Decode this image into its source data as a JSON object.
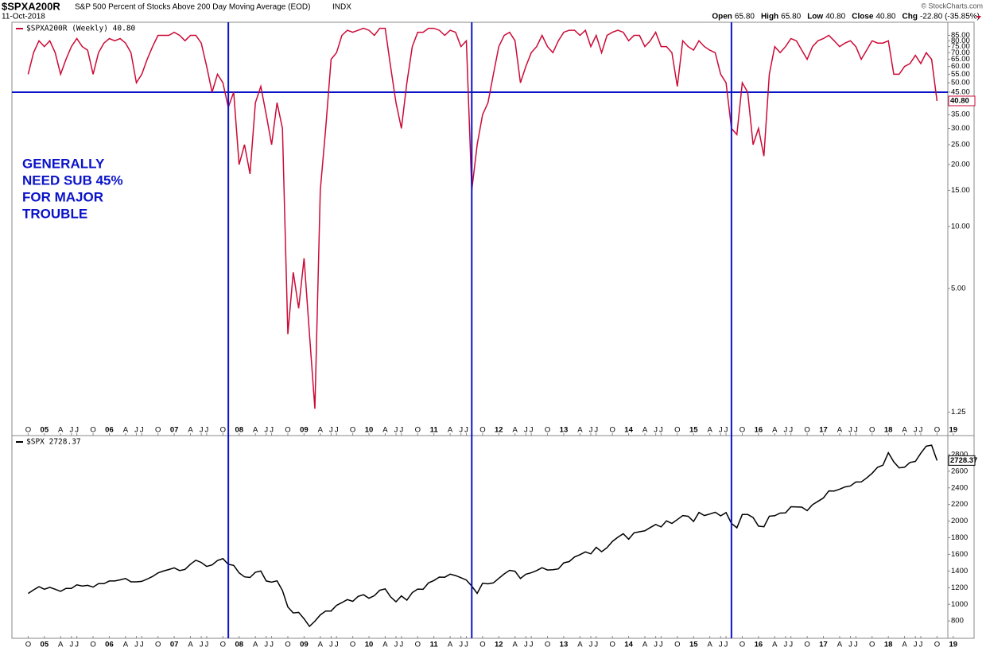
{
  "header": {
    "symbol": "$SPXA200R",
    "description": "S&P 500 Percent of Stocks Above 200 Day Moving Average (EOD)",
    "exchange": "INDX",
    "date": "11-Oct-2018",
    "watermark": "© StockCharts.com",
    "stats": [
      {
        "label": "Open",
        "value": "65.80"
      },
      {
        "label": "High",
        "value": "65.80"
      },
      {
        "label": "Low",
        "value": "40.80"
      },
      {
        "label": "Close",
        "value": "40.80"
      },
      {
        "label": "Chg",
        "value": "-22.80 (-35.85%)"
      }
    ]
  },
  "chart_data": {
    "type": "line",
    "x": [
      "2004-10",
      "2004-11",
      "2004-12",
      "2005-01",
      "2005-02",
      "2005-03",
      "2005-04",
      "2005-05",
      "2005-06",
      "2005-07",
      "2005-08",
      "2005-09",
      "2005-10",
      "2005-11",
      "2005-12",
      "2006-01",
      "2006-02",
      "2006-03",
      "2006-04",
      "2006-05",
      "2006-06",
      "2006-07",
      "2006-08",
      "2006-09",
      "2006-10",
      "2006-11",
      "2006-12",
      "2007-01",
      "2007-02",
      "2007-03",
      "2007-04",
      "2007-05",
      "2007-06",
      "2007-07",
      "2007-08",
      "2007-09",
      "2007-10",
      "2007-11",
      "2007-12",
      "2008-01",
      "2008-02",
      "2008-03",
      "2008-04",
      "2008-05",
      "2008-06",
      "2008-07",
      "2008-08",
      "2008-09",
      "2008-10",
      "2008-11",
      "2008-12",
      "2009-01",
      "2009-02",
      "2009-03",
      "2009-04",
      "2009-05",
      "2009-06",
      "2009-07",
      "2009-08",
      "2009-09",
      "2009-10",
      "2009-11",
      "2009-12",
      "2010-01",
      "2010-02",
      "2010-03",
      "2010-04",
      "2010-05",
      "2010-06",
      "2010-07",
      "2010-08",
      "2010-09",
      "2010-10",
      "2010-11",
      "2010-12",
      "2011-01",
      "2011-02",
      "2011-03",
      "2011-04",
      "2011-05",
      "2011-06",
      "2011-07",
      "2011-08",
      "2011-09",
      "2011-10",
      "2011-11",
      "2011-12",
      "2012-01",
      "2012-02",
      "2012-03",
      "2012-04",
      "2012-05",
      "2012-06",
      "2012-07",
      "2012-08",
      "2012-09",
      "2012-10",
      "2012-11",
      "2012-12",
      "2013-01",
      "2013-02",
      "2013-03",
      "2013-04",
      "2013-05",
      "2013-06",
      "2013-07",
      "2013-08",
      "2013-09",
      "2013-10",
      "2013-11",
      "2013-12",
      "2014-01",
      "2014-02",
      "2014-03",
      "2014-04",
      "2014-05",
      "2014-06",
      "2014-07",
      "2014-08",
      "2014-09",
      "2014-10",
      "2014-11",
      "2014-12",
      "2015-01",
      "2015-02",
      "2015-03",
      "2015-04",
      "2015-05",
      "2015-06",
      "2015-07",
      "2015-08",
      "2015-09",
      "2015-10",
      "2015-11",
      "2015-12",
      "2016-01",
      "2016-02",
      "2016-03",
      "2016-04",
      "2016-05",
      "2016-06",
      "2016-07",
      "2016-08",
      "2016-09",
      "2016-10",
      "2016-11",
      "2016-12",
      "2017-01",
      "2017-02",
      "2017-03",
      "2017-04",
      "2017-05",
      "2017-06",
      "2017-07",
      "2017-08",
      "2017-09",
      "2017-10",
      "2017-11",
      "2017-12",
      "2018-01",
      "2018-02",
      "2018-03",
      "2018-04",
      "2018-05",
      "2018-06",
      "2018-07",
      "2018-08",
      "2018-09",
      "2018-10"
    ],
    "xticks": [
      {
        "value": "2004-10",
        "label": "O"
      },
      {
        "value": "2005-01",
        "label": "05"
      },
      {
        "value": "2005-04",
        "label": "A"
      },
      {
        "value": "2005-06",
        "label": "J"
      },
      {
        "value": "2005-07",
        "label": "J"
      },
      {
        "value": "2005-10",
        "label": "O"
      },
      {
        "value": "2006-01",
        "label": "06"
      },
      {
        "value": "2006-04",
        "label": "A"
      },
      {
        "value": "2006-06",
        "label": "J"
      },
      {
        "value": "2006-07",
        "label": "J"
      },
      {
        "value": "2006-10",
        "label": "O"
      },
      {
        "value": "2007-01",
        "label": "07"
      },
      {
        "value": "2007-04",
        "label": "A"
      },
      {
        "value": "2007-06",
        "label": "J"
      },
      {
        "value": "2007-07",
        "label": "J"
      },
      {
        "value": "2007-10",
        "label": "O"
      },
      {
        "value": "2008-01",
        "label": "08"
      },
      {
        "value": "2008-04",
        "label": "A"
      },
      {
        "value": "2008-06",
        "label": "J"
      },
      {
        "value": "2008-07",
        "label": "J"
      },
      {
        "value": "2008-10",
        "label": "O"
      },
      {
        "value": "2009-01",
        "label": "09"
      },
      {
        "value": "2009-04",
        "label": "A"
      },
      {
        "value": "2009-06",
        "label": "J"
      },
      {
        "value": "2009-07",
        "label": "J"
      },
      {
        "value": "2009-10",
        "label": "O"
      },
      {
        "value": "2010-01",
        "label": "10"
      },
      {
        "value": "2010-04",
        "label": "A"
      },
      {
        "value": "2010-06",
        "label": "J"
      },
      {
        "value": "2010-07",
        "label": "J"
      },
      {
        "value": "2010-10",
        "label": "O"
      },
      {
        "value": "2011-01",
        "label": "11"
      },
      {
        "value": "2011-04",
        "label": "A"
      },
      {
        "value": "2011-06",
        "label": "J"
      },
      {
        "value": "2011-07",
        "label": "J"
      },
      {
        "value": "2011-10",
        "label": "O"
      },
      {
        "value": "2012-01",
        "label": "12"
      },
      {
        "value": "2012-04",
        "label": "A"
      },
      {
        "value": "2012-06",
        "label": "J"
      },
      {
        "value": "2012-07",
        "label": "J"
      },
      {
        "value": "2012-10",
        "label": "O"
      },
      {
        "value": "2013-01",
        "label": "13"
      },
      {
        "value": "2013-04",
        "label": "A"
      },
      {
        "value": "2013-06",
        "label": "J"
      },
      {
        "value": "2013-07",
        "label": "J"
      },
      {
        "value": "2013-10",
        "label": "O"
      },
      {
        "value": "2014-01",
        "label": "14"
      },
      {
        "value": "2014-04",
        "label": "A"
      },
      {
        "value": "2014-06",
        "label": "J"
      },
      {
        "value": "2014-07",
        "label": "J"
      },
      {
        "value": "2014-10",
        "label": "O"
      },
      {
        "value": "2015-01",
        "label": "15"
      },
      {
        "value": "2015-04",
        "label": "A"
      },
      {
        "value": "2015-06",
        "label": "J"
      },
      {
        "value": "2015-07",
        "label": "J"
      },
      {
        "value": "2015-10",
        "label": "O"
      },
      {
        "value": "2016-01",
        "label": "16"
      },
      {
        "value": "2016-04",
        "label": "A"
      },
      {
        "value": "2016-06",
        "label": "J"
      },
      {
        "value": "2016-07",
        "label": "J"
      },
      {
        "value": "2016-10",
        "label": "O"
      },
      {
        "value": "2017-01",
        "label": "17"
      },
      {
        "value": "2017-04",
        "label": "A"
      },
      {
        "value": "2017-06",
        "label": "J"
      },
      {
        "value": "2017-07",
        "label": "J"
      },
      {
        "value": "2017-10",
        "label": "O"
      },
      {
        "value": "2018-01",
        "label": "18"
      },
      {
        "value": "2018-04",
        "label": "A"
      },
      {
        "value": "2018-06",
        "label": "J"
      },
      {
        "value": "2018-07",
        "label": "J"
      },
      {
        "value": "2018-10",
        "label": "O"
      },
      {
        "value": "2019-01",
        "label": "19"
      }
    ],
    "xlim": [
      "2004-07",
      "2018-12"
    ],
    "vlines": [
      "2007-11",
      "2011-08",
      "2015-08"
    ],
    "panels": [
      {
        "name": "$SPXA200R (Weekly) 40.80",
        "color": "#cc0a36",
        "log_scale": true,
        "ylim": [
          1.15,
          95
        ],
        "yticks": [
          {
            "value": 85,
            "label": "85.00"
          },
          {
            "value": 80,
            "label": "80.00"
          },
          {
            "value": 75,
            "label": "75.00"
          },
          {
            "value": 70,
            "label": "70.00"
          },
          {
            "value": 65,
            "label": "65.00"
          },
          {
            "value": 60,
            "label": "60.00"
          },
          {
            "value": 55,
            "label": "55.00"
          },
          {
            "value": 50,
            "label": "50.00"
          },
          {
            "value": 45,
            "label": "45.00"
          },
          {
            "value": 40,
            "label": "40.00"
          },
          {
            "value": 35,
            "label": "35.00"
          },
          {
            "value": 30,
            "label": "30.00"
          },
          {
            "value": 25,
            "label": "25.00"
          },
          {
            "value": 20,
            "label": "20.00"
          },
          {
            "value": 15,
            "label": "15.00"
          },
          {
            "value": 10,
            "label": "10.00"
          },
          {
            "value": 5,
            "label": "5.00"
          },
          {
            "value": 1.25,
            "label": "1.25"
          }
        ],
        "hline": 45,
        "hline_color": "#0a12c8",
        "last_value_label": "40.80",
        "annotation": [
          "GENERALLY",
          "NEED SUB 45%",
          "FOR MAJOR",
          "TROUBLE"
        ],
        "values": [
          55,
          70,
          80,
          75,
          80,
          70,
          55,
          65,
          75,
          82,
          75,
          72,
          55,
          70,
          78,
          82,
          80,
          82,
          78,
          70,
          50,
          55,
          65,
          75,
          85,
          85,
          85,
          88,
          85,
          80,
          85,
          85,
          78,
          60,
          45,
          55,
          50,
          38,
          45,
          20,
          25,
          18,
          40,
          48,
          35,
          25,
          40,
          30,
          3,
          6,
          4,
          7,
          3,
          1.3,
          15,
          30,
          65,
          70,
          85,
          90,
          88,
          90,
          92,
          90,
          85,
          92,
          92,
          60,
          40,
          30,
          50,
          75,
          88,
          88,
          92,
          92,
          90,
          85,
          90,
          88,
          75,
          80,
          15,
          25,
          35,
          40,
          55,
          75,
          85,
          88,
          80,
          50,
          60,
          70,
          75,
          85,
          75,
          70,
          80,
          88,
          90,
          90,
          85,
          90,
          75,
          85,
          70,
          85,
          88,
          90,
          88,
          80,
          85,
          85,
          75,
          80,
          88,
          75,
          75,
          70,
          48,
          80,
          75,
          72,
          80,
          75,
          72,
          70,
          55,
          50,
          30,
          28,
          50,
          45,
          25,
          30,
          22,
          55,
          75,
          70,
          75,
          82,
          80,
          72,
          65,
          75,
          80,
          82,
          85,
          80,
          75,
          78,
          80,
          75,
          65,
          72,
          80,
          78,
          78,
          80,
          55,
          55,
          60,
          62,
          68,
          62,
          70,
          65,
          40.8
        ]
      },
      {
        "name": "$SPX 2728.37",
        "color": "#000000",
        "log_scale": false,
        "ylim": [
          620,
          2990
        ],
        "yticks": [
          2800,
          2600,
          2400,
          2200,
          2000,
          1800,
          1600,
          1400,
          1200,
          1000,
          800
        ],
        "values": [
          1130,
          1173,
          1212,
          1181,
          1204,
          1181,
          1156,
          1191,
          1191,
          1234,
          1220,
          1228,
          1207,
          1249,
          1248,
          1280,
          1280,
          1294,
          1310,
          1270,
          1270,
          1276,
          1303,
          1335,
          1377,
          1400,
          1418,
          1438,
          1406,
          1420,
          1482,
          1530,
          1503,
          1455,
          1473,
          1526,
          1549,
          1481,
          1468,
          1378,
          1330,
          1322,
          1385,
          1400,
          1280,
          1267,
          1282,
          1166,
          968,
          896,
          903,
          825,
          735,
          797,
          872,
          919,
          919,
          987,
          1020,
          1057,
          1036,
          1095,
          1115,
          1073,
          1104,
          1169,
          1186,
          1089,
          1030,
          1101,
          1049,
          1141,
          1183,
          1180,
          1257,
          1286,
          1327,
          1325,
          1363,
          1345,
          1320,
          1292,
          1218,
          1131,
          1253,
          1246,
          1257,
          1312,
          1365,
          1408,
          1397,
          1310,
          1362,
          1379,
          1406,
          1440,
          1412,
          1416,
          1426,
          1498,
          1514,
          1569,
          1597,
          1630,
          1606,
          1685,
          1632,
          1681,
          1756,
          1806,
          1848,
          1782,
          1859,
          1872,
          1883,
          1923,
          1960,
          1930,
          2003,
          1972,
          2018,
          2067,
          2058,
          1995,
          2104,
          2067,
          2085,
          2107,
          2063,
          2103,
          1972,
          1920,
          2079,
          2080,
          2043,
          1940,
          1932,
          2059,
          2065,
          2096,
          2098,
          2173,
          2170,
          2168,
          2126,
          2198,
          2238,
          2278,
          2363,
          2362,
          2384,
          2411,
          2423,
          2470,
          2471,
          2519,
          2575,
          2647,
          2673,
          2823,
          2713,
          2640,
          2648,
          2705,
          2718,
          2816,
          2901,
          2913,
          2728.37
        ]
      }
    ]
  }
}
